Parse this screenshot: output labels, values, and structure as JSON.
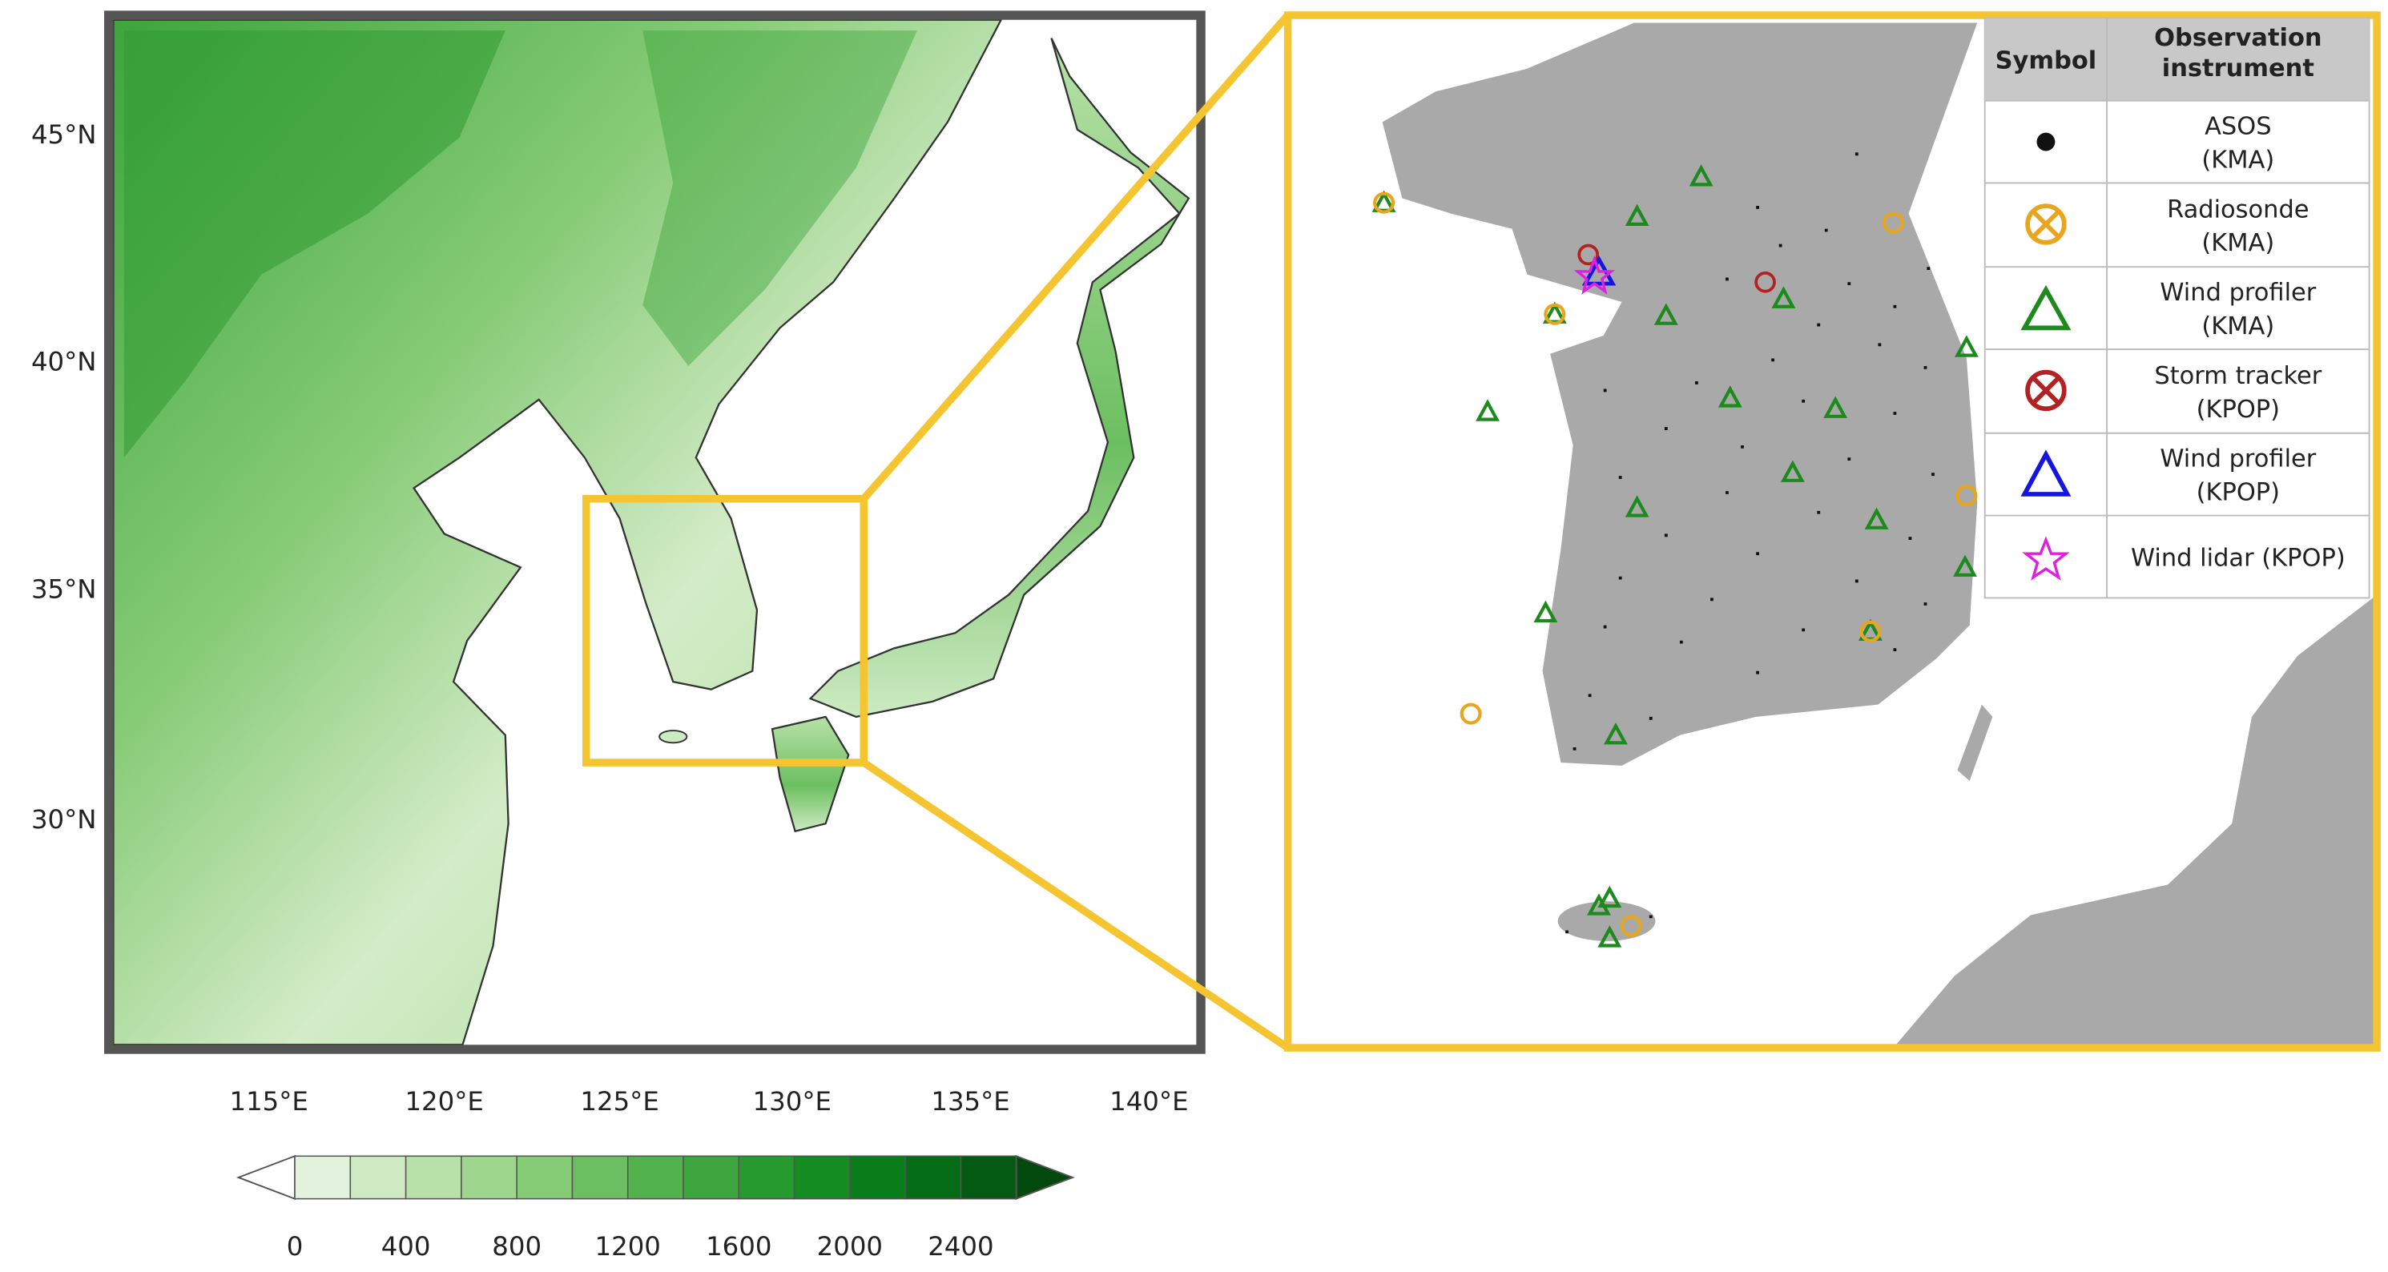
{
  "map": {
    "lat_labels": [
      "45°N",
      "40°N",
      "35°N",
      "30°N"
    ],
    "lon_labels": [
      "115°E",
      "120°E",
      "125°E",
      "130°E",
      "135°E",
      "140°E"
    ]
  },
  "colorbar": {
    "labels": [
      0,
      400,
      800,
      1200,
      1600,
      2000,
      2400
    ],
    "colors": [
      "#ffffff",
      "#e3f2dc",
      "#cdeac2",
      "#b7e1a8",
      "#9fd68e",
      "#86cb76",
      "#6cbf60",
      "#52b24c",
      "#3ca53b",
      "#279a2e",
      "#158c22",
      "#0a7d1b",
      "#056c16",
      "#045a12",
      "#03490e"
    ]
  },
  "legend": {
    "headers": [
      [
        "Symbol"
      ],
      [
        "Observation",
        "instrument"
      ]
    ],
    "rows": [
      [
        "ASOS",
        "(KMA)"
      ],
      [
        "Radiosonde",
        "(KMA)"
      ],
      [
        "Wind profiler",
        "(KMA)"
      ],
      [
        "Storm tracker",
        "(KPOP)"
      ],
      [
        "Wind profiler",
        "(KPOP)"
      ],
      [
        "Wind lidar (KPOP)"
      ]
    ]
  }
}
